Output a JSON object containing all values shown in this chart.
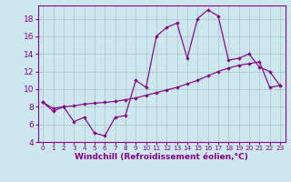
{
  "xlabel": "Windchill (Refroidissement éolien,°C)",
  "xlim": [
    -0.5,
    23.5
  ],
  "ylim": [
    4,
    19.5
  ],
  "yticks": [
    4,
    6,
    8,
    10,
    12,
    14,
    16,
    18
  ],
  "xticks": [
    0,
    1,
    2,
    3,
    4,
    5,
    6,
    7,
    8,
    9,
    10,
    11,
    12,
    13,
    14,
    15,
    16,
    17,
    18,
    19,
    20,
    21,
    22,
    23
  ],
  "xtick_labels": [
    "0",
    "1",
    "2",
    "3",
    "4",
    "5",
    "6",
    "7",
    "8",
    "9",
    "10",
    "11",
    "12",
    "13",
    "14",
    "15",
    "16",
    "17",
    "18",
    "19",
    "20",
    "21",
    "22",
    "23"
  ],
  "bg_color": "#cce8ee",
  "line_color": "#880088",
  "grid_color": "#aacccc",
  "series1_x": [
    0,
    1,
    2,
    3,
    4,
    5,
    6,
    7,
    8,
    9,
    10,
    11,
    12,
    13,
    14,
    15,
    16,
    17,
    18,
    19,
    20,
    21,
    22,
    23
  ],
  "series1_y": [
    8.5,
    7.5,
    8.0,
    6.3,
    6.8,
    5.0,
    4.7,
    6.8,
    7.0,
    11.0,
    10.2,
    16.0,
    17.0,
    17.5,
    13.5,
    18.0,
    19.0,
    18.3,
    13.3,
    13.5,
    14.0,
    12.5,
    12.0,
    10.4
  ],
  "series2_x": [
    0,
    1,
    2,
    3,
    4,
    5,
    6,
    7,
    8,
    9,
    10,
    11,
    12,
    13,
    14,
    15,
    16,
    17,
    18,
    19,
    20,
    21,
    22,
    23
  ],
  "series2_y": [
    8.5,
    7.8,
    8.0,
    8.1,
    8.3,
    8.4,
    8.5,
    8.6,
    8.8,
    9.0,
    9.3,
    9.6,
    9.9,
    10.2,
    10.6,
    11.0,
    11.5,
    12.0,
    12.4,
    12.7,
    12.9,
    13.1,
    10.2,
    10.4
  ],
  "marker": "D",
  "markersize": 2.2,
  "linewidth": 0.85,
  "xlabel_fontsize": 6.5,
  "xlabel_fontweight": "bold",
  "ytick_fontsize": 6.5,
  "xtick_fontsize": 5.2
}
